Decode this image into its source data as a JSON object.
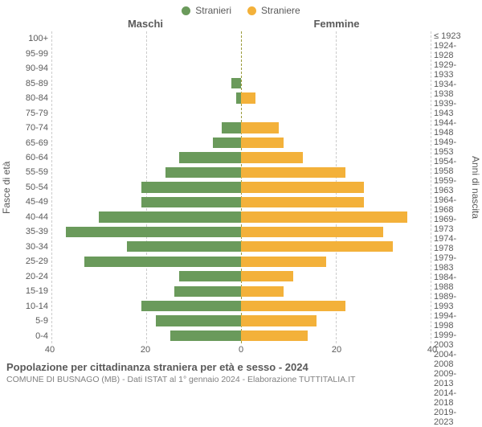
{
  "legend": {
    "male": {
      "label": "Stranieri",
      "color": "#6a9a5b"
    },
    "female": {
      "label": "Straniere",
      "color": "#f3b13a"
    }
  },
  "headers": {
    "male": "Maschi",
    "female": "Femmine"
  },
  "axis_labels": {
    "left": "Fasce di età",
    "right": "Anni di nascita"
  },
  "chart": {
    "type": "population-pyramid",
    "max_value": 40,
    "x_ticks": [
      40,
      20,
      0,
      20,
      40
    ],
    "grid_color": "#cccccc",
    "center_color": "#9a9a3a",
    "background_color": "#ffffff",
    "male_color": "#6a9a5b",
    "female_color": "#f3b13a",
    "rows": [
      {
        "age": "100+",
        "birth": "≤ 1923",
        "m": 0,
        "f": 0
      },
      {
        "age": "95-99",
        "birth": "1924-1928",
        "m": 0,
        "f": 0
      },
      {
        "age": "90-94",
        "birth": "1929-1933",
        "m": 0,
        "f": 0
      },
      {
        "age": "85-89",
        "birth": "1934-1938",
        "m": 2,
        "f": 0
      },
      {
        "age": "80-84",
        "birth": "1939-1943",
        "m": 1,
        "f": 3
      },
      {
        "age": "75-79",
        "birth": "1944-1948",
        "m": 0,
        "f": 0
      },
      {
        "age": "70-74",
        "birth": "1949-1953",
        "m": 4,
        "f": 8
      },
      {
        "age": "65-69",
        "birth": "1954-1958",
        "m": 6,
        "f": 9
      },
      {
        "age": "60-64",
        "birth": "1959-1963",
        "m": 13,
        "f": 13
      },
      {
        "age": "55-59",
        "birth": "1964-1968",
        "m": 16,
        "f": 22
      },
      {
        "age": "50-54",
        "birth": "1969-1973",
        "m": 21,
        "f": 26
      },
      {
        "age": "45-49",
        "birth": "1974-1978",
        "m": 21,
        "f": 26
      },
      {
        "age": "40-44",
        "birth": "1979-1983",
        "m": 30,
        "f": 35
      },
      {
        "age": "35-39",
        "birth": "1984-1988",
        "m": 37,
        "f": 30
      },
      {
        "age": "30-34",
        "birth": "1989-1993",
        "m": 24,
        "f": 32
      },
      {
        "age": "25-29",
        "birth": "1994-1998",
        "m": 33,
        "f": 18
      },
      {
        "age": "20-24",
        "birth": "1999-2003",
        "m": 13,
        "f": 11
      },
      {
        "age": "15-19",
        "birth": "2004-2008",
        "m": 14,
        "f": 9
      },
      {
        "age": "10-14",
        "birth": "2009-2013",
        "m": 21,
        "f": 22
      },
      {
        "age": "5-9",
        "birth": "2014-2018",
        "m": 18,
        "f": 16
      },
      {
        "age": "0-4",
        "birth": "2019-2023",
        "m": 15,
        "f": 14
      }
    ]
  },
  "footer": {
    "title": "Popolazione per cittadinanza straniera per età e sesso - 2024",
    "subtitle": "COMUNE DI BUSNAGO (MB) - Dati ISTAT al 1° gennaio 2024 - Elaborazione TUTTITALIA.IT"
  }
}
